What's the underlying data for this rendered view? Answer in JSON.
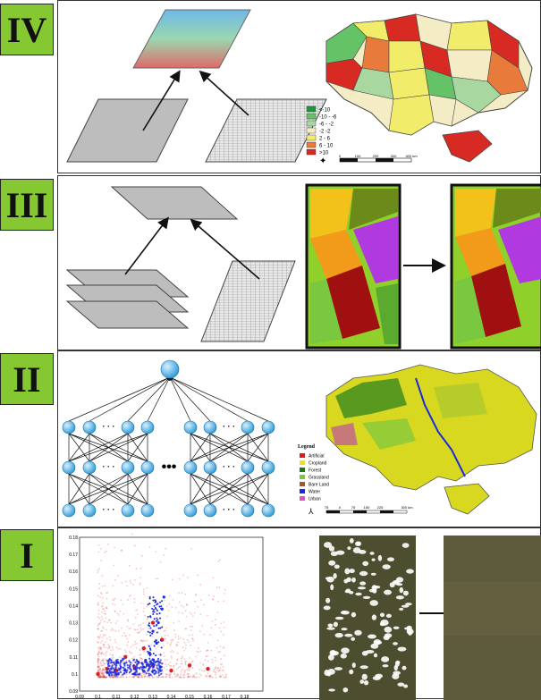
{
  "stages": [
    {
      "id": "IV",
      "label": "IV"
    },
    {
      "id": "III",
      "label": "III"
    },
    {
      "id": "II",
      "label": "II"
    },
    {
      "id": "I",
      "label": "I"
    }
  ],
  "panel_iv": {
    "legend_items": [
      {
        "label": "<-10",
        "color": "#1a9a3a"
      },
      {
        "label": "-10 - -6",
        "color": "#66c266"
      },
      {
        "label": "-6 - -2",
        "color": "#a8d8a0"
      },
      {
        "label": "-2 -2",
        "color": "#f3ecc4"
      },
      {
        "label": "2 - 6",
        "color": "#f1ec6a"
      },
      {
        "label": "6 - 10",
        "color": "#e87a3c"
      },
      {
        "label": ">10",
        "color": "#d72a22"
      }
    ],
    "scale_ticks": [
      "0",
      "100",
      "200",
      "300",
      "400 km"
    ]
  },
  "panel_ii": {
    "legend_title": "Legend",
    "legend_items": [
      {
        "label": "Artificial",
        "color": "#e01a1a"
      },
      {
        "label": "Cropland",
        "color": "#f0e020"
      },
      {
        "label": "Forest",
        "color": "#1a7a1a"
      },
      {
        "label": "Grassland",
        "color": "#7ac840"
      },
      {
        "label": "Bare Land",
        "color": "#a05a2a"
      },
      {
        "label": "Water",
        "color": "#1a2ae0"
      },
      {
        "label": "Urban",
        "color": "#e050c0"
      }
    ],
    "scale_ticks": [
      "75",
      "0",
      "75",
      "150",
      "225",
      "300 km"
    ]
  },
  "panel_i": {
    "chart_data": {
      "type": "scatter",
      "title": "",
      "xlabel": "",
      "ylabel": "",
      "xlim": [
        0.09,
        0.19
      ],
      "ylim": [
        0.09,
        0.18
      ],
      "x_ticks": [
        "0.09",
        "0.1",
        "0.11",
        "0.12",
        "0.13",
        "0.14",
        "0.15",
        "0.16",
        "0.17",
        "0.18"
      ],
      "y_ticks": [
        "0.09",
        "0.1",
        "0.11",
        "0.12",
        "0.13",
        "0.14",
        "0.15",
        "0.16",
        "0.17",
        "0.18"
      ],
      "series": [
        {
          "color": "#e02020",
          "points": [
            [
              0.1,
              0.1
            ],
            [
              0.11,
              0.102
            ],
            [
              0.12,
              0.104
            ],
            [
              0.13,
              0.105
            ],
            [
              0.115,
              0.11
            ],
            [
              0.125,
              0.115
            ],
            [
              0.14,
              0.102
            ],
            [
              0.15,
              0.105
            ],
            [
              0.105,
              0.103
            ],
            [
              0.135,
              0.12
            ],
            [
              0.13,
              0.13
            ],
            [
              0.16,
              0.103
            ]
          ]
        },
        {
          "color": "#1a2ae0",
          "points": [
            [
              0.105,
              0.101
            ],
            [
              0.11,
              0.1
            ],
            [
              0.115,
              0.102
            ],
            [
              0.12,
              0.103
            ],
            [
              0.125,
              0.104
            ],
            [
              0.13,
              0.106
            ],
            [
              0.128,
              0.112
            ],
            [
              0.132,
              0.118
            ],
            [
              0.13,
              0.125
            ],
            [
              0.133,
              0.13
            ],
            [
              0.135,
              0.138
            ],
            [
              0.136,
              0.145
            ],
            [
              0.12,
              0.1
            ],
            [
              0.134,
              0.104
            ],
            [
              0.126,
              0.108
            ]
          ]
        }
      ]
    }
  }
}
